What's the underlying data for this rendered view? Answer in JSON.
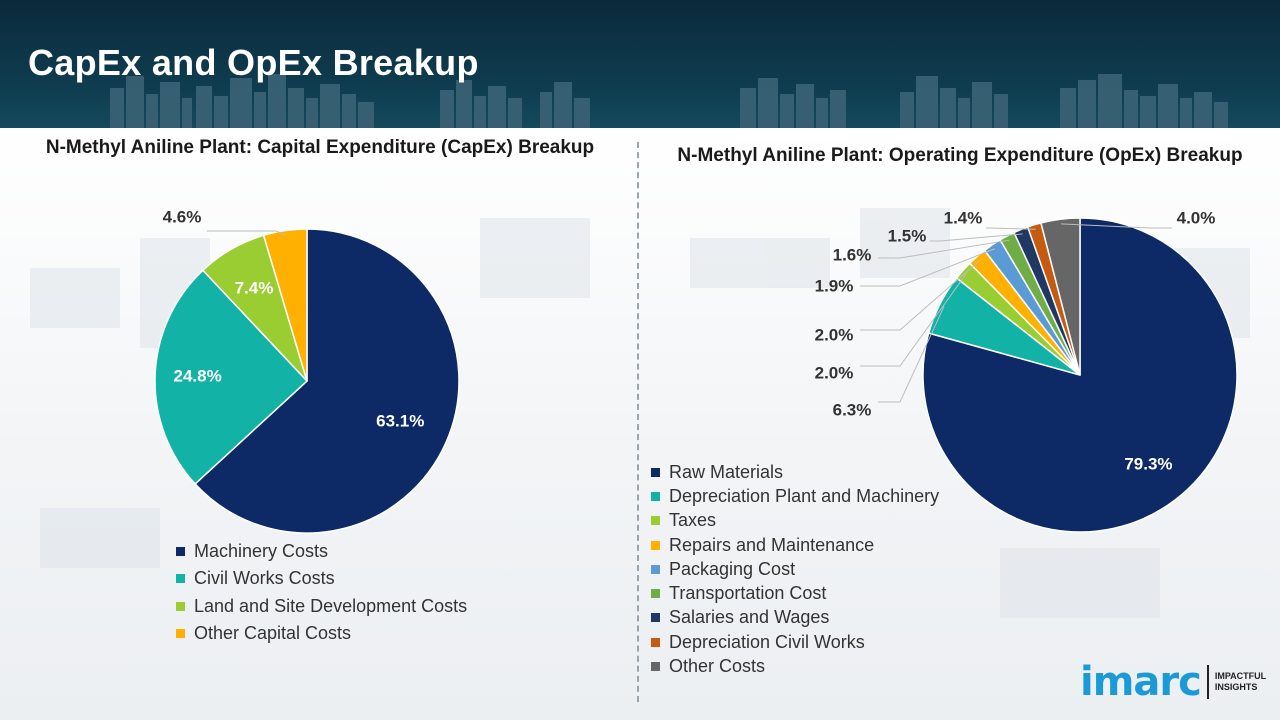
{
  "page": {
    "title": "CapEx and OpEx Breakup"
  },
  "capex": {
    "title": "N-Methyl Aniline Plant: Capital Expenditure (CapEx) Breakup",
    "legend": [
      "Machinery Costs",
      "Civil Works Costs",
      "Land and Site Development Costs",
      "Other Capital Costs"
    ]
  },
  "opex": {
    "title": "N-Methyl Aniline Plant: Operating Expenditure (OpEx) Breakup",
    "legend": [
      "Raw Materials",
      "Depreciation Plant and Machinery",
      "Taxes",
      "Repairs and Maintenance",
      "Packaging Cost",
      "Transportation Cost",
      "Salaries and Wages",
      "Depreciation Civil Works",
      "Other Costs"
    ]
  },
  "chart_data": [
    {
      "type": "pie",
      "title": "N-Methyl Aniline Plant: Capital Expenditure (CapEx) Breakup",
      "categories": [
        "Machinery Costs",
        "Civil Works Costs",
        "Land and Site Development Costs",
        "Other Capital Costs"
      ],
      "values": [
        63.1,
        24.8,
        7.4,
        4.6
      ],
      "labels": [
        "63.1%",
        "24.8%",
        "7.4%",
        "4.6%"
      ],
      "colors": [
        "#0d2a66",
        "#12b3a6",
        "#9acd32",
        "#ffb000"
      ],
      "start": "12 o'clock",
      "direction": "clockwise",
      "legend_position": "bottom"
    },
    {
      "type": "pie",
      "title": "N-Methyl Aniline Plant: Operating Expenditure (OpEx) Breakup",
      "categories": [
        "Raw Materials",
        "Depreciation Plant and Machinery",
        "Taxes",
        "Repairs and Maintenance",
        "Packaging Cost",
        "Transportation Cost",
        "Salaries and Wages",
        "Depreciation Civil Works",
        "Other Costs"
      ],
      "values": [
        79.3,
        6.3,
        2.0,
        2.0,
        1.9,
        1.6,
        1.5,
        1.4,
        4.0
      ],
      "labels": [
        "79.3%",
        "6.3%",
        "2.0%",
        "2.0%",
        "1.9%",
        "1.6%",
        "1.5%",
        "1.4%",
        "4.0%"
      ],
      "colors": [
        "#0d2a66",
        "#12b3a6",
        "#9acd32",
        "#ffb000",
        "#5b9bd5",
        "#70ad47",
        "#203864",
        "#c55a11",
        "#666666"
      ],
      "start": "12 o'clock",
      "direction": "clockwise",
      "legend_position": "bottom-left"
    }
  ],
  "logo": {
    "brand": "imarc",
    "tagline_1": "IMPACTFUL",
    "tagline_2": "INSIGHTS"
  }
}
